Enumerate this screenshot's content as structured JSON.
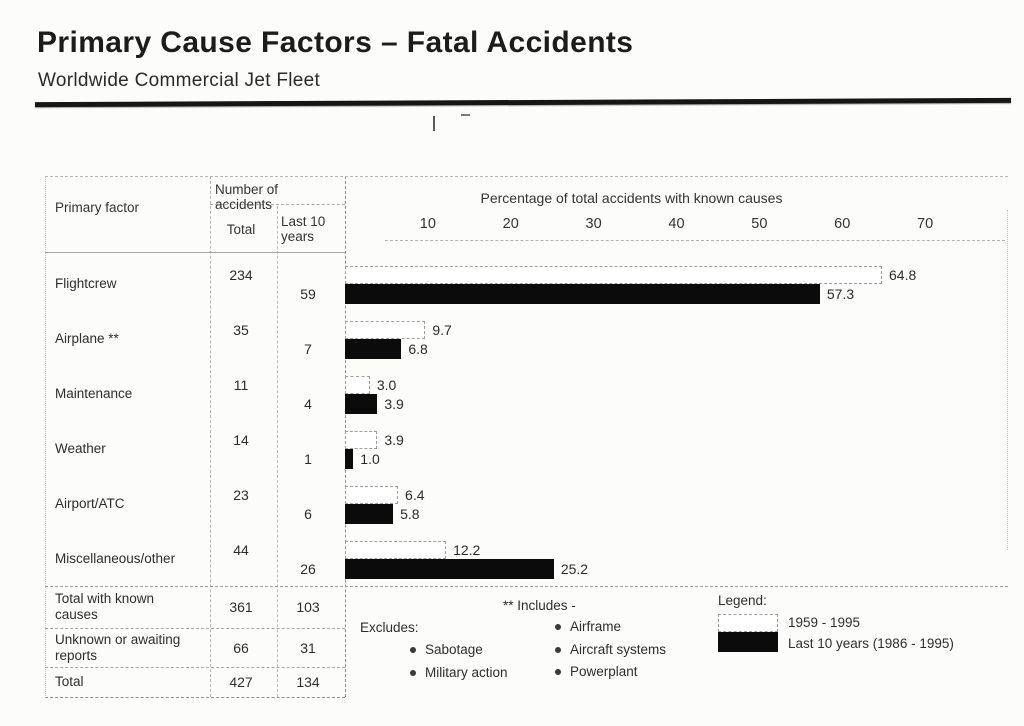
{
  "page": {
    "title": "Primary Cause Factors – Fatal Accidents",
    "subtitle": "Worldwide Commercial Jet Fleet"
  },
  "table_header": {
    "primary_factor": "Primary factor",
    "number_of_accidents": "Number of accidents",
    "col_total": "Total",
    "col_last10": "Last 10 years"
  },
  "chart_data": {
    "type": "bar",
    "orientation": "horizontal",
    "title": "Percentage of total accidents with known causes",
    "xlabel": "Percentage of total accidents with known causes",
    "axis": {
      "ticks": [
        10,
        20,
        30,
        40,
        50,
        60,
        70
      ],
      "plot_max": 80,
      "unit": "%",
      "grid": false
    },
    "categories": [
      "Flightcrew",
      "Airplane **",
      "Maintenance",
      "Weather",
      "Airport/ATC",
      "Miscellaneous/other"
    ],
    "series": [
      {
        "name": "1959 - 1995",
        "values": [
          64.8,
          9.7,
          3.0,
          3.9,
          6.4,
          12.2
        ]
      },
      {
        "name": "Last 10 years (1986 - 1995)",
        "values": [
          57.3,
          6.8,
          3.9,
          1.0,
          5.8,
          25.2
        ]
      }
    ],
    "rows": [
      {
        "label": "Flightcrew",
        "total": "234",
        "last10": "59",
        "pct_all": "64.8",
        "pct_last10": "57.3"
      },
      {
        "label": "Airplane **",
        "total": "35",
        "last10": "7",
        "pct_all": "9.7",
        "pct_last10": "6.8"
      },
      {
        "label": "Maintenance",
        "total": "11",
        "last10": "4",
        "pct_all": "3.0",
        "pct_last10": "3.9"
      },
      {
        "label": "Weather",
        "total": "14",
        "last10": "1",
        "pct_all": "3.9",
        "pct_last10": "1.0"
      },
      {
        "label": "Airport/ATC",
        "total": "23",
        "last10": "6",
        "pct_all": "6.4",
        "pct_last10": "5.8"
      },
      {
        "label": "Miscellaneous/other",
        "total": "44",
        "last10": "26",
        "pct_all": "12.2",
        "pct_last10": "25.2"
      }
    ]
  },
  "totals": {
    "rows": [
      {
        "label": "Total with known causes",
        "total": "361",
        "last10": "103"
      },
      {
        "label": "Unknown or awaiting reports",
        "total": "66",
        "last10": "31"
      },
      {
        "label": "Total",
        "total": "427",
        "last10": "134"
      }
    ]
  },
  "notes": {
    "includes_title": "** Includes -",
    "includes": [
      "Airframe",
      "Aircraft systems",
      "Powerplant"
    ],
    "excludes_title": "Excludes:",
    "excludes": [
      "Sabotage",
      "Military action"
    ]
  },
  "legend": {
    "title": "Legend:",
    "entries": [
      {
        "swatch_color": "#ffffff",
        "label": "1959 - 1995"
      },
      {
        "swatch_color": "#0b0b0b",
        "label": "Last 10 years (1986 - 1995)"
      }
    ]
  },
  "colors": {
    "bar_black": "#0b0b0b",
    "bar_white": "#ffffff",
    "text": "#2e2e2e",
    "rule": "#161616",
    "grid_line": "#9f9f9f"
  }
}
